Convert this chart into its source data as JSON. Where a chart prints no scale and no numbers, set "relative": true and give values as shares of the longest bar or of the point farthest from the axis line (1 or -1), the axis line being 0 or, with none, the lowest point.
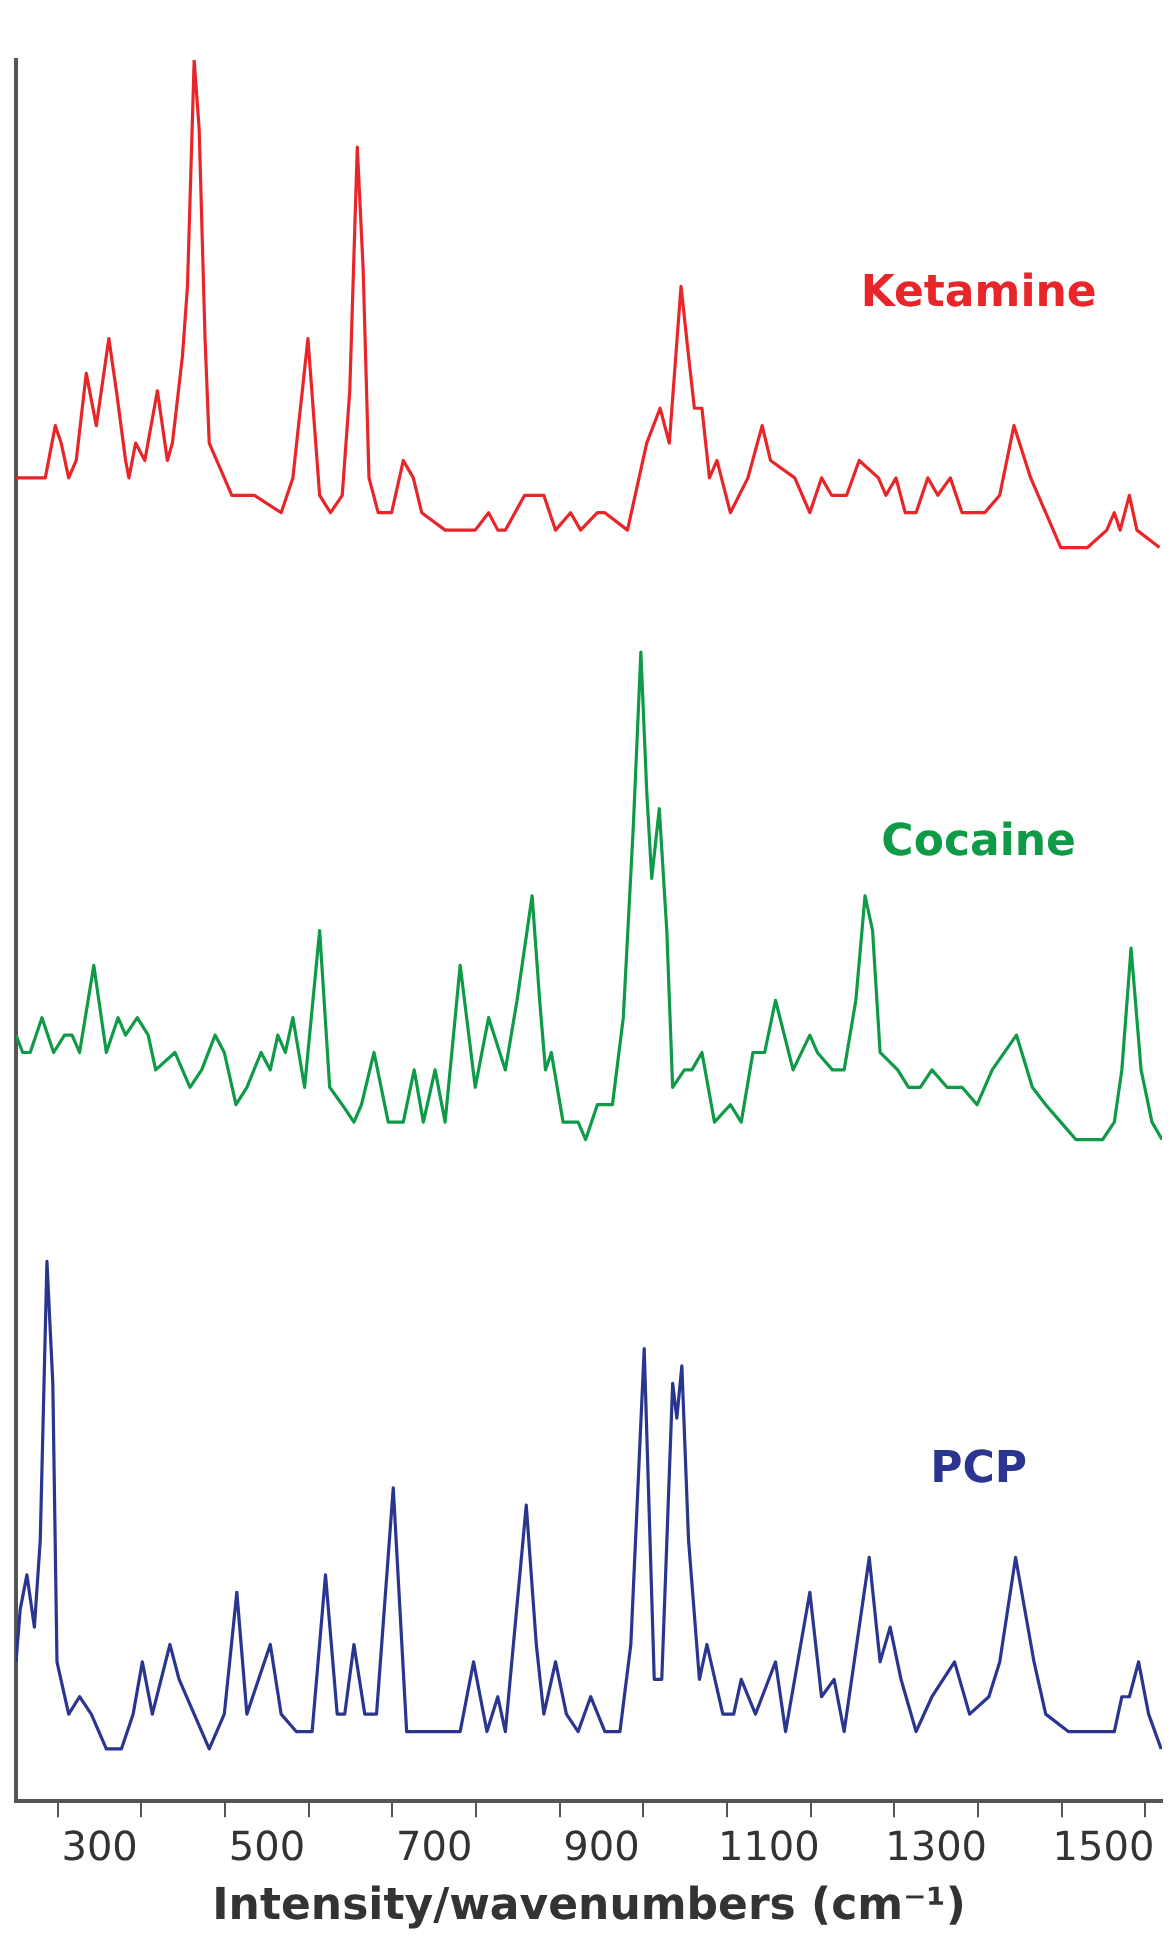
{
  "chart_data": {
    "type": "line",
    "xlabel": "Intensity/wavenumbers (cm⁻¹)",
    "relative": true,
    "marker": "none",
    "line_style": "solid",
    "grid": false,
    "legend": false,
    "xlim": [
      200,
      1570
    ],
    "xticks": [
      {
        "value": 250,
        "label": null
      },
      300,
      {
        "value": 350,
        "label": null
      },
      {
        "value": 450,
        "label": null
      },
      500,
      {
        "value": 550,
        "label": null
      },
      {
        "value": 650,
        "label": null
      },
      700,
      {
        "value": 750,
        "label": null
      },
      {
        "value": 850,
        "label": null
      },
      900,
      {
        "value": 950,
        "label": null
      },
      {
        "value": 1050,
        "label": null
      },
      1100,
      {
        "value": 1150,
        "label": null
      },
      {
        "value": 1250,
        "label": null
      },
      1300,
      {
        "value": 1350,
        "label": null
      },
      {
        "value": 1450,
        "label": null
      },
      1500,
      {
        "value": 1550,
        "label": null
      }
    ],
    "series": [
      {
        "name": "Ketamine",
        "color": "#e8262a",
        "x": [
          200,
          226,
          235,
          247,
          254,
          263,
          272,
          284,
          296,
          311,
          320,
          331,
          335,
          343,
          354,
          369,
          381,
          387,
          399,
          405,
          413,
          419,
          426,
          431,
          449,
          458,
          485,
          517,
          531,
          549,
          563,
          576,
          590,
          599,
          608,
          615,
          622,
          633,
          649,
          663,
          675,
          685,
          713,
          749,
          765,
          776,
          785,
          808,
          822,
          831,
          845,
          863,
          875,
          895,
          904,
          931,
          954,
          970,
          981,
          995,
          1004,
          1011,
          1020,
          1029,
          1038,
          1054,
          1075,
          1092,
          1102,
          1131,
          1149,
          1163,
          1175,
          1193,
          1208,
          1231,
          1240,
          1252,
          1263,
          1276,
          1290,
          1302,
          1317,
          1331,
          1345,
          1358,
          1376,
          1393,
          1413,
          1431,
          1449,
          1481,
          1504,
          1513,
          1520,
          1531,
          1540,
          1567
        ],
        "values": [
          0.76,
          0.76,
          0.76,
          0.79,
          0.78,
          0.76,
          0.77,
          0.82,
          0.79,
          0.84,
          0.81,
          0.77,
          0.76,
          0.78,
          0.77,
          0.81,
          0.77,
          0.78,
          0.83,
          0.87,
          1.0,
          0.96,
          0.84,
          0.78,
          0.76,
          0.75,
          0.75,
          0.74,
          0.76,
          0.84,
          0.75,
          0.74,
          0.75,
          0.81,
          0.95,
          0.88,
          0.76,
          0.74,
          0.74,
          0.77,
          0.76,
          0.74,
          0.73,
          0.73,
          0.74,
          0.73,
          0.73,
          0.75,
          0.75,
          0.75,
          0.73,
          0.74,
          0.73,
          0.74,
          0.74,
          0.73,
          0.78,
          0.8,
          0.78,
          0.87,
          0.83,
          0.8,
          0.8,
          0.76,
          0.77,
          0.74,
          0.76,
          0.79,
          0.77,
          0.76,
          0.74,
          0.76,
          0.75,
          0.75,
          0.77,
          0.76,
          0.75,
          0.76,
          0.74,
          0.74,
          0.76,
          0.75,
          0.76,
          0.74,
          0.74,
          0.74,
          0.75,
          0.79,
          0.76,
          0.74,
          0.72,
          0.72,
          0.73,
          0.74,
          0.73,
          0.75,
          0.73,
          0.72
        ]
      },
      {
        "name": "Cocaine",
        "color": "#0f9a48",
        "x": [
          200,
          208,
          217,
          231,
          245,
          258,
          267,
          276,
          293,
          308,
          322,
          331,
          345,
          358,
          367,
          390,
          408,
          422,
          438,
          449,
          463,
          476,
          493,
          504,
          513,
          522,
          531,
          545,
          563,
          575,
          590,
          604,
          613,
          628,
          645,
          663,
          676,
          687,
          701,
          713,
          731,
          749,
          765,
          785,
          799,
          817,
          826,
          833,
          840,
          854,
          872,
          881,
          895,
          913,
          926,
          938,
          947,
          954,
          960,
          969,
          978,
          985,
          999,
          1008,
          1020,
          1035,
          1054,
          1067,
          1081,
          1095,
          1108,
          1129,
          1149,
          1158,
          1176,
          1190,
          1204,
          1215,
          1224,
          1233,
          1254,
          1267,
          1281,
          1295,
          1313,
          1331,
          1349,
          1367,
          1396,
          1415,
          1431,
          1449,
          1467,
          1485,
          1499,
          1513,
          1522,
          1533,
          1545,
          1558,
          1570
        ],
        "values": [
          0.44,
          0.43,
          0.43,
          0.45,
          0.43,
          0.44,
          0.44,
          0.43,
          0.48,
          0.43,
          0.45,
          0.44,
          0.45,
          0.44,
          0.42,
          0.43,
          0.41,
          0.42,
          0.44,
          0.43,
          0.4,
          0.41,
          0.43,
          0.42,
          0.44,
          0.43,
          0.45,
          0.41,
          0.5,
          0.41,
          0.4,
          0.39,
          0.4,
          0.43,
          0.39,
          0.39,
          0.42,
          0.39,
          0.42,
          0.39,
          0.48,
          0.41,
          0.45,
          0.42,
          0.46,
          0.52,
          0.46,
          0.42,
          0.43,
          0.39,
          0.39,
          0.38,
          0.4,
          0.4,
          0.45,
          0.56,
          0.66,
          0.58,
          0.53,
          0.57,
          0.5,
          0.41,
          0.42,
          0.42,
          0.43,
          0.39,
          0.4,
          0.39,
          0.43,
          0.43,
          0.46,
          0.42,
          0.44,
          0.43,
          0.42,
          0.42,
          0.46,
          0.52,
          0.5,
          0.43,
          0.42,
          0.41,
          0.41,
          0.42,
          0.41,
          0.41,
          0.4,
          0.42,
          0.44,
          0.41,
          0.4,
          0.39,
          0.38,
          0.38,
          0.38,
          0.39,
          0.42,
          0.49,
          0.42,
          0.39,
          0.38
        ]
      },
      {
        "name": "PCP",
        "color": "#2a3590",
        "x": [
          200,
          205,
          213,
          222,
          229,
          237,
          244,
          249,
          263,
          276,
          290,
          308,
          326,
          340,
          351,
          363,
          384,
          395,
          413,
          431,
          449,
          464,
          476,
          490,
          504,
          517,
          535,
          554,
          570,
          584,
          593,
          604,
          617,
          631,
          651,
          667,
          685,
          713,
          731,
          747,
          763,
          776,
          785,
          810,
          822,
          831,
          845,
          858,
          872,
          887,
          904,
          922,
          935,
          951,
          963,
          972,
          985,
          990,
          996,
          1004,
          1017,
          1026,
          1045,
          1058,
          1067,
          1084,
          1108,
          1120,
          1149,
          1163,
          1178,
          1190,
          1220,
          1233,
          1245,
          1258,
          1276,
          1295,
          1322,
          1340,
          1363,
          1376,
          1395,
          1417,
          1431,
          1458,
          1495,
          1513,
          1522,
          1531,
          1542,
          1554,
          1569
        ],
        "values": [
          0.08,
          0.11,
          0.13,
          0.1,
          0.15,
          0.31,
          0.24,
          0.08,
          0.05,
          0.06,
          0.05,
          0.03,
          0.03,
          0.05,
          0.08,
          0.05,
          0.09,
          0.07,
          0.05,
          0.03,
          0.05,
          0.12,
          0.05,
          0.07,
          0.09,
          0.05,
          0.04,
          0.04,
          0.13,
          0.05,
          0.05,
          0.09,
          0.05,
          0.05,
          0.18,
          0.04,
          0.04,
          0.04,
          0.04,
          0.08,
          0.04,
          0.06,
          0.04,
          0.17,
          0.09,
          0.05,
          0.08,
          0.05,
          0.04,
          0.06,
          0.04,
          0.04,
          0.09,
          0.26,
          0.07,
          0.07,
          0.24,
          0.22,
          0.25,
          0.15,
          0.07,
          0.09,
          0.05,
          0.05,
          0.07,
          0.05,
          0.08,
          0.04,
          0.12,
          0.06,
          0.07,
          0.04,
          0.14,
          0.08,
          0.1,
          0.07,
          0.04,
          0.06,
          0.08,
          0.05,
          0.06,
          0.08,
          0.14,
          0.08,
          0.05,
          0.04,
          0.04,
          0.04,
          0.06,
          0.06,
          0.08,
          0.05,
          0.03
        ]
      }
    ]
  }
}
